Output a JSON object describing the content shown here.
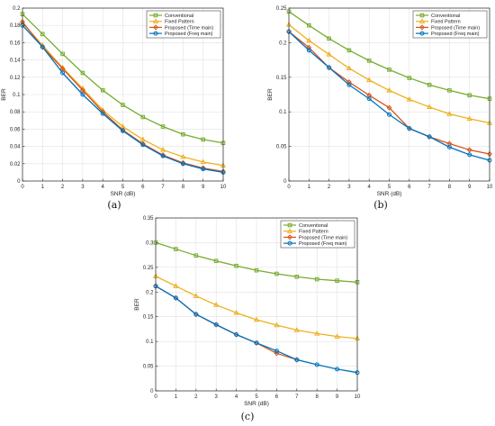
{
  "chart_data": [
    {
      "type": "line",
      "caption": "(a)",
      "xlabel": "SNR (dB)",
      "ylabel": "BER",
      "xlim": [
        0,
        10
      ],
      "ylim": [
        0,
        0.2
      ],
      "xticks": [
        0,
        1,
        2,
        3,
        4,
        5,
        6,
        7,
        8,
        9,
        10
      ],
      "yticks": [
        0,
        0.02,
        0.04,
        0.06,
        0.08,
        0.1,
        0.12,
        0.14,
        0.16,
        0.18,
        0.2
      ],
      "ytick_labels": [
        "0",
        "0.02",
        "0.04",
        "0.06",
        "0.08",
        "0.1",
        "0.12",
        "0.14",
        "0.16",
        "0.18",
        "0.2"
      ],
      "grid": true,
      "legend_position": "top-right",
      "x": [
        0,
        1,
        2,
        3,
        4,
        5,
        6,
        7,
        8,
        9,
        10
      ],
      "series": [
        {
          "name": "Conventional",
          "color": "#77ac30",
          "marker": "square",
          "values": [
            0.193,
            0.17,
            0.147,
            0.125,
            0.105,
            0.088,
            0.074,
            0.063,
            0.054,
            0.048,
            0.044
          ]
        },
        {
          "name": "Fixed Pattern",
          "color": "#edb120",
          "marker": "triangle",
          "values": [
            0.183,
            0.157,
            0.131,
            0.107,
            0.082,
            0.063,
            0.048,
            0.036,
            0.028,
            0.022,
            0.018
          ]
        },
        {
          "name": "Proposed (Time main)",
          "color": "#d95319",
          "marker": "diamond",
          "values": [
            0.184,
            0.155,
            0.13,
            0.105,
            0.08,
            0.059,
            0.043,
            0.03,
            0.021,
            0.015,
            0.011
          ]
        },
        {
          "name": "Proposed (Freq main)",
          "color": "#0072bd",
          "marker": "circle",
          "values": [
            0.18,
            0.155,
            0.125,
            0.1,
            0.078,
            0.058,
            0.042,
            0.029,
            0.02,
            0.014,
            0.01
          ]
        }
      ]
    },
    {
      "type": "line",
      "caption": "(b)",
      "xlabel": "SNR (dB)",
      "ylabel": "BER",
      "xlim": [
        0,
        10
      ],
      "ylim": [
        0,
        0.25
      ],
      "xticks": [
        0,
        1,
        2,
        3,
        4,
        5,
        6,
        7,
        8,
        9,
        10
      ],
      "yticks": [
        0,
        0.05,
        0.1,
        0.15,
        0.2,
        0.25
      ],
      "ytick_labels": [
        "0",
        "0.05",
        "0.1",
        "0.15",
        "0.2",
        "0.25"
      ],
      "grid": true,
      "legend_position": "top-right",
      "x": [
        0,
        1,
        2,
        3,
        4,
        5,
        6,
        7,
        8,
        9,
        10
      ],
      "series": [
        {
          "name": "Conventional",
          "color": "#77ac30",
          "marker": "square",
          "values": [
            0.245,
            0.225,
            0.206,
            0.189,
            0.174,
            0.161,
            0.149,
            0.139,
            0.131,
            0.124,
            0.119
          ]
        },
        {
          "name": "Fixed Pattern",
          "color": "#edb120",
          "marker": "triangle",
          "values": [
            0.226,
            0.203,
            0.183,
            0.163,
            0.146,
            0.131,
            0.118,
            0.107,
            0.097,
            0.09,
            0.084
          ]
        },
        {
          "name": "Proposed (Time main)",
          "color": "#d95319",
          "marker": "diamond",
          "values": [
            0.216,
            0.193,
            0.164,
            0.143,
            0.124,
            0.106,
            0.076,
            0.064,
            0.054,
            0.045,
            0.039
          ]
        },
        {
          "name": "Proposed (Freq main)",
          "color": "#0072bd",
          "marker": "circle",
          "values": [
            0.216,
            0.189,
            0.164,
            0.139,
            0.119,
            0.096,
            0.076,
            0.064,
            0.049,
            0.038,
            0.03
          ]
        }
      ]
    },
    {
      "type": "line",
      "caption": "(c)",
      "xlabel": "SNR (dB)",
      "ylabel": "BER",
      "xlim": [
        0,
        10
      ],
      "ylim": [
        0,
        0.35
      ],
      "xticks": [
        0,
        1,
        2,
        3,
        4,
        5,
        6,
        7,
        8,
        9,
        10
      ],
      "yticks": [
        0,
        0.05,
        0.1,
        0.15,
        0.2,
        0.25,
        0.3,
        0.35
      ],
      "ytick_labels": [
        "0",
        "0.05",
        "0.1",
        "0.15",
        "0.2",
        "0.25",
        "0.3",
        "0.35"
      ],
      "grid": true,
      "legend_position": "top-right",
      "x": [
        0,
        1,
        2,
        3,
        4,
        5,
        6,
        7,
        8,
        9,
        10
      ],
      "series": [
        {
          "name": "Conventional",
          "color": "#77ac30",
          "marker": "square",
          "values": [
            0.3,
            0.287,
            0.274,
            0.263,
            0.253,
            0.244,
            0.237,
            0.231,
            0.226,
            0.223,
            0.22
          ]
        },
        {
          "name": "Fixed Pattern",
          "color": "#edb120",
          "marker": "triangle",
          "values": [
            0.232,
            0.212,
            0.192,
            0.174,
            0.158,
            0.144,
            0.133,
            0.123,
            0.116,
            0.11,
            0.106
          ]
        },
        {
          "name": "Proposed (Time main)",
          "color": "#d95319",
          "marker": "diamond",
          "values": [
            0.212,
            0.188,
            0.155,
            0.134,
            0.114,
            0.097,
            0.076,
            0.063,
            null,
            null,
            null
          ]
        },
        {
          "name": "Proposed (Freq main)",
          "color": "#0072bd",
          "marker": "circle",
          "values": [
            0.212,
            0.188,
            0.155,
            0.134,
            0.114,
            0.097,
            0.081,
            0.063,
            0.053,
            0.044,
            0.037
          ]
        }
      ]
    }
  ]
}
